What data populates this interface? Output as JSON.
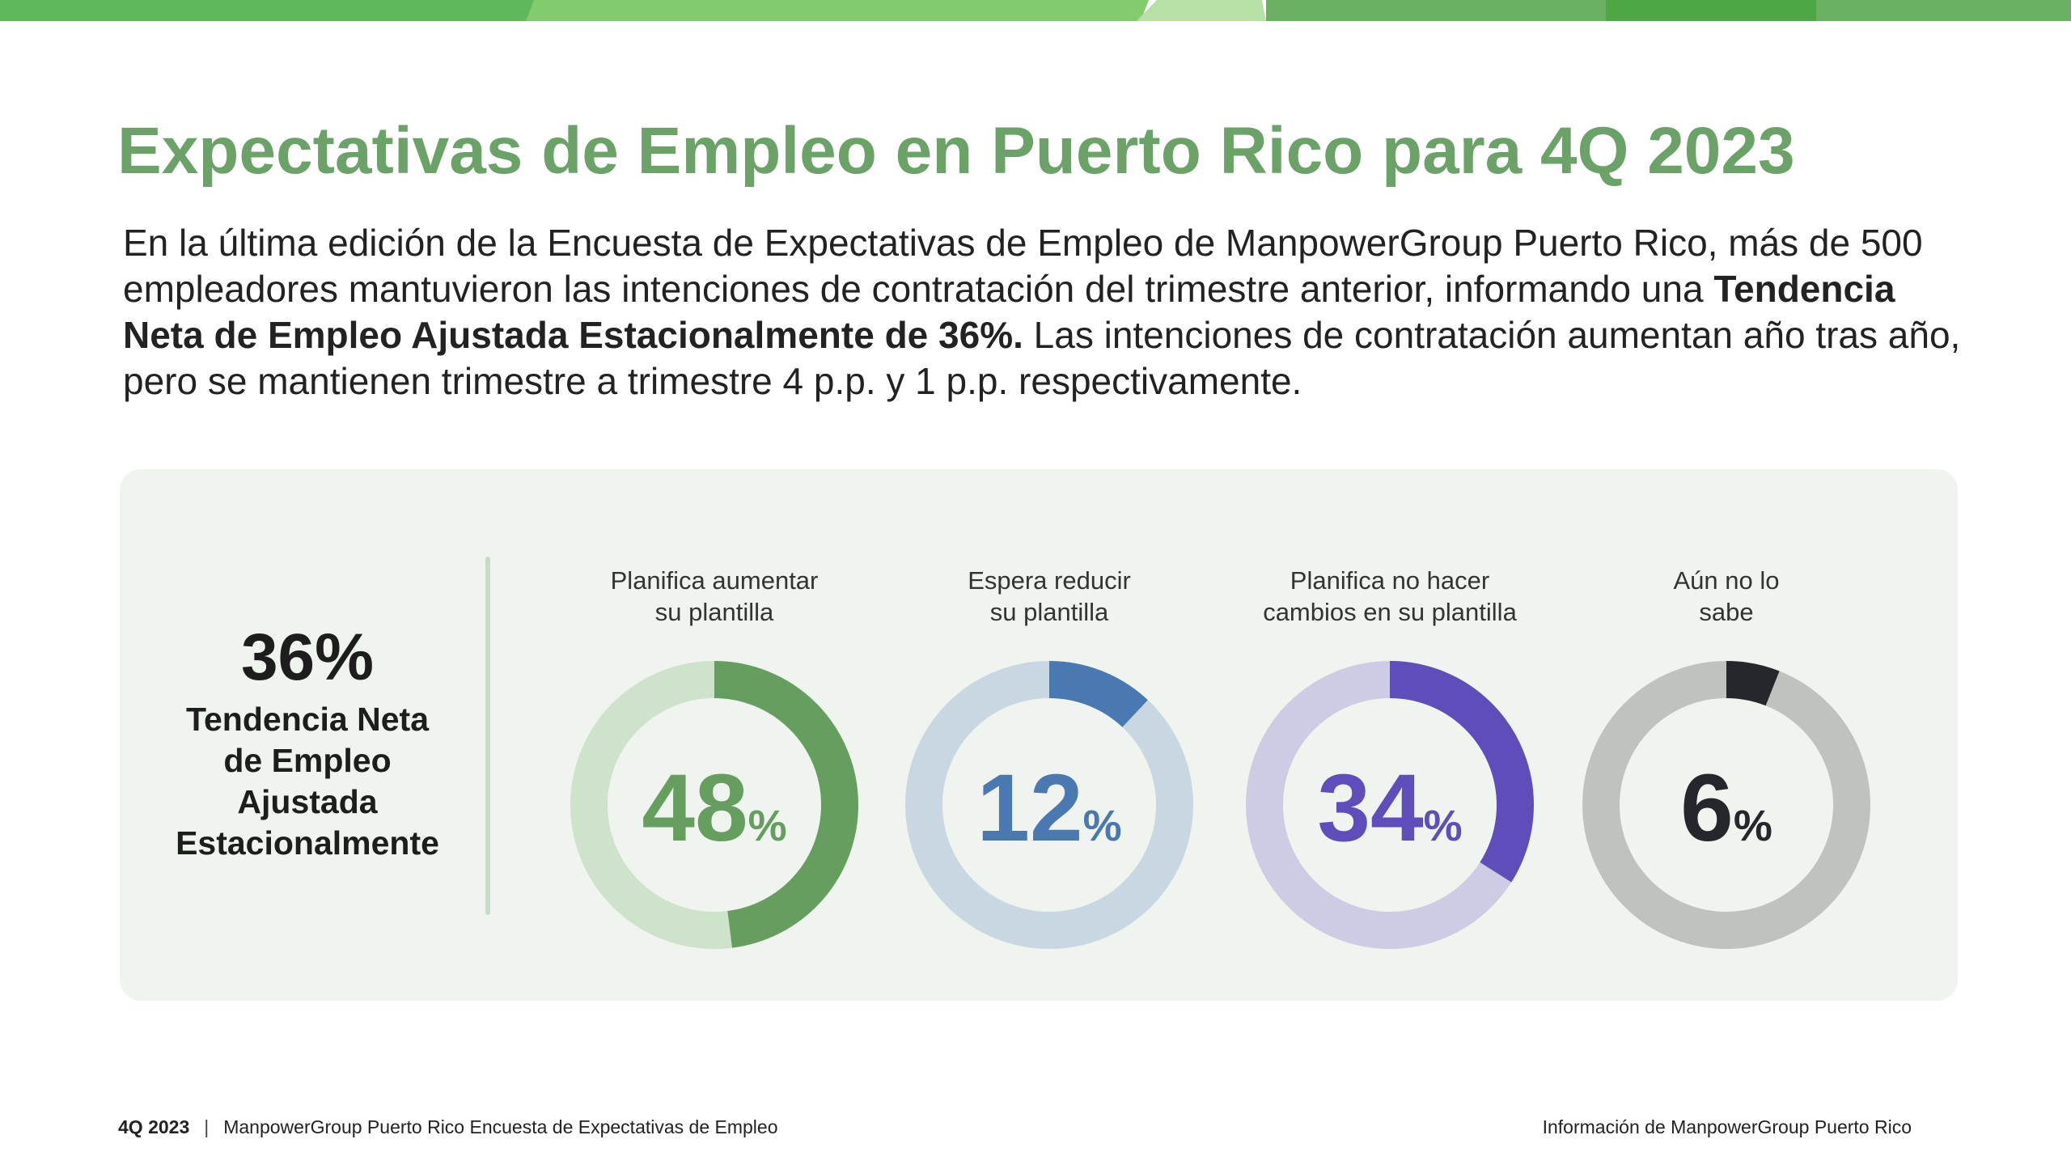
{
  "header": {
    "title": "Expectativas de Empleo en Puerto Rico para 4Q 2023"
  },
  "intro": {
    "part1": "En la última edición de la Encuesta de Expectativas de Empleo de ManpowerGroup Puerto Rico, más de 500 empleadores mantuvieron las intenciones de contratación del trimestre anterior, informando una ",
    "bold": "Tendencia Neta de Empleo Ajustada Estacionalmente de 36%.",
    "part2": "  Las intenciones de contratación aumentan año tras año, pero se mantienen trimestre a trimestre 4 p.p. y 1 p.p. respectivamente."
  },
  "summary": {
    "value": "36%",
    "label_lines": [
      "Tendencia Neta",
      "de Empleo",
      "Ajustada",
      "Estacionalmente"
    ]
  },
  "colors": {
    "title": "#6aa267",
    "panel_bg": "#eff4ee",
    "top_bar": [
      "#5fb95c",
      "#82cc6e",
      "#b7e0a7",
      "#6ab164",
      "#4da742"
    ]
  },
  "chart_data": {
    "type": "pie",
    "variant": "donut",
    "title": "",
    "percent_symbol": "%",
    "series": [
      {
        "name": "Planifica aumentar su plantilla",
        "label_lines": [
          "Planifica aumentar",
          "su plantilla"
        ],
        "value": 48,
        "value_label": "48",
        "color": "#659e5f",
        "track_color": "#cfe2cc"
      },
      {
        "name": "Espera reducir su plantilla",
        "label_lines": [
          "Espera reducir",
          "su plantilla"
        ],
        "value": 12,
        "value_label": "12",
        "color": "#4a78b1",
        "track_color": "#c9d7e3"
      },
      {
        "name": "Planifica no hacer cambios en su plantilla",
        "label_lines": [
          "Planifica no hacer",
          "cambios en su plantilla"
        ],
        "value": 34,
        "value_label": "34",
        "color": "#5e4dba",
        "track_color": "#cdcce5"
      },
      {
        "name": "Aún no lo sabe",
        "label_lines": [
          "Aún no lo",
          "sabe"
        ],
        "value": 6,
        "value_label": "6",
        "color": "#24272c",
        "track_color": "#bfc3bf"
      }
    ]
  },
  "footer": {
    "quarter": "4Q 2023",
    "separator": "|",
    "source": "ManpowerGroup Puerto Rico Encuesta de Expectativas de Empleo",
    "right": "Información de ManpowerGroup Puerto Rico"
  }
}
